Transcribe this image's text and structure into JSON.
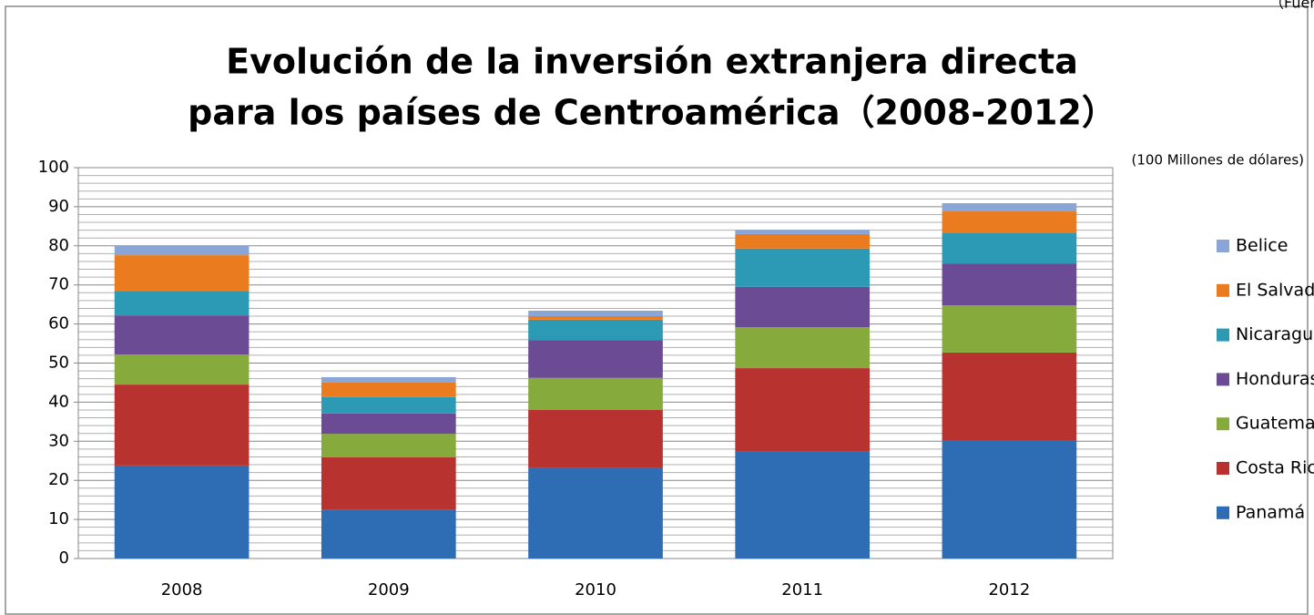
{
  "chart_data": {
    "type": "stacked_bar",
    "title": "Evolución de la inversión extranjera directa",
    "subtitle": "para los países de Centroamérica（2008-2012）",
    "unit_note": "(100 Millones de dólares)",
    "source": "（Fuente: BM",
    "categories": [
      "2008",
      "2009",
      "2010",
      "2011",
      "2012"
    ],
    "series": [
      {
        "name": "Panamá",
        "color": "#2e6db4",
        "values": [
          23.8,
          12.4,
          23.3,
          27.3,
          30.1
        ]
      },
      {
        "name": "Costa Rica",
        "color": "#b83230",
        "values": [
          20.7,
          13.5,
          14.7,
          21.4,
          22.6
        ]
      },
      {
        "name": "Guatemala",
        "color": "#86ab3c",
        "values": [
          7.7,
          6.0,
          8.2,
          10.5,
          12.1
        ]
      },
      {
        "name": "Honduras",
        "color": "#6b4c94",
        "values": [
          10.0,
          5.2,
          9.7,
          10.3,
          10.7
        ]
      },
      {
        "name": "Nicaragua",
        "color": "#2d9ab5",
        "values": [
          6.3,
          4.2,
          5.2,
          9.8,
          7.9
        ]
      },
      {
        "name": "El Salvador",
        "color": "#ea7c1f",
        "values": [
          9.1,
          3.7,
          0.9,
          3.7,
          5.4
        ]
      },
      {
        "name": "Belice",
        "color": "#8aa6d6",
        "values": [
          2.4,
          1.4,
          1.4,
          1.1,
          2.1
        ]
      }
    ],
    "ylim": [
      0,
      100
    ],
    "yticks": [
      0,
      10,
      20,
      30,
      40,
      50,
      60,
      70,
      80,
      90,
      100
    ],
    "minor_grid": [
      2,
      4,
      6,
      8,
      12,
      14,
      16,
      18,
      22,
      24,
      26,
      28,
      32,
      34,
      36,
      38,
      42,
      44,
      46,
      48,
      52,
      54,
      56,
      58,
      62,
      64,
      66,
      68,
      72,
      74,
      76,
      78,
      82,
      84,
      86,
      88,
      92,
      94,
      96,
      98
    ],
    "grid": true,
    "legend": "right"
  }
}
